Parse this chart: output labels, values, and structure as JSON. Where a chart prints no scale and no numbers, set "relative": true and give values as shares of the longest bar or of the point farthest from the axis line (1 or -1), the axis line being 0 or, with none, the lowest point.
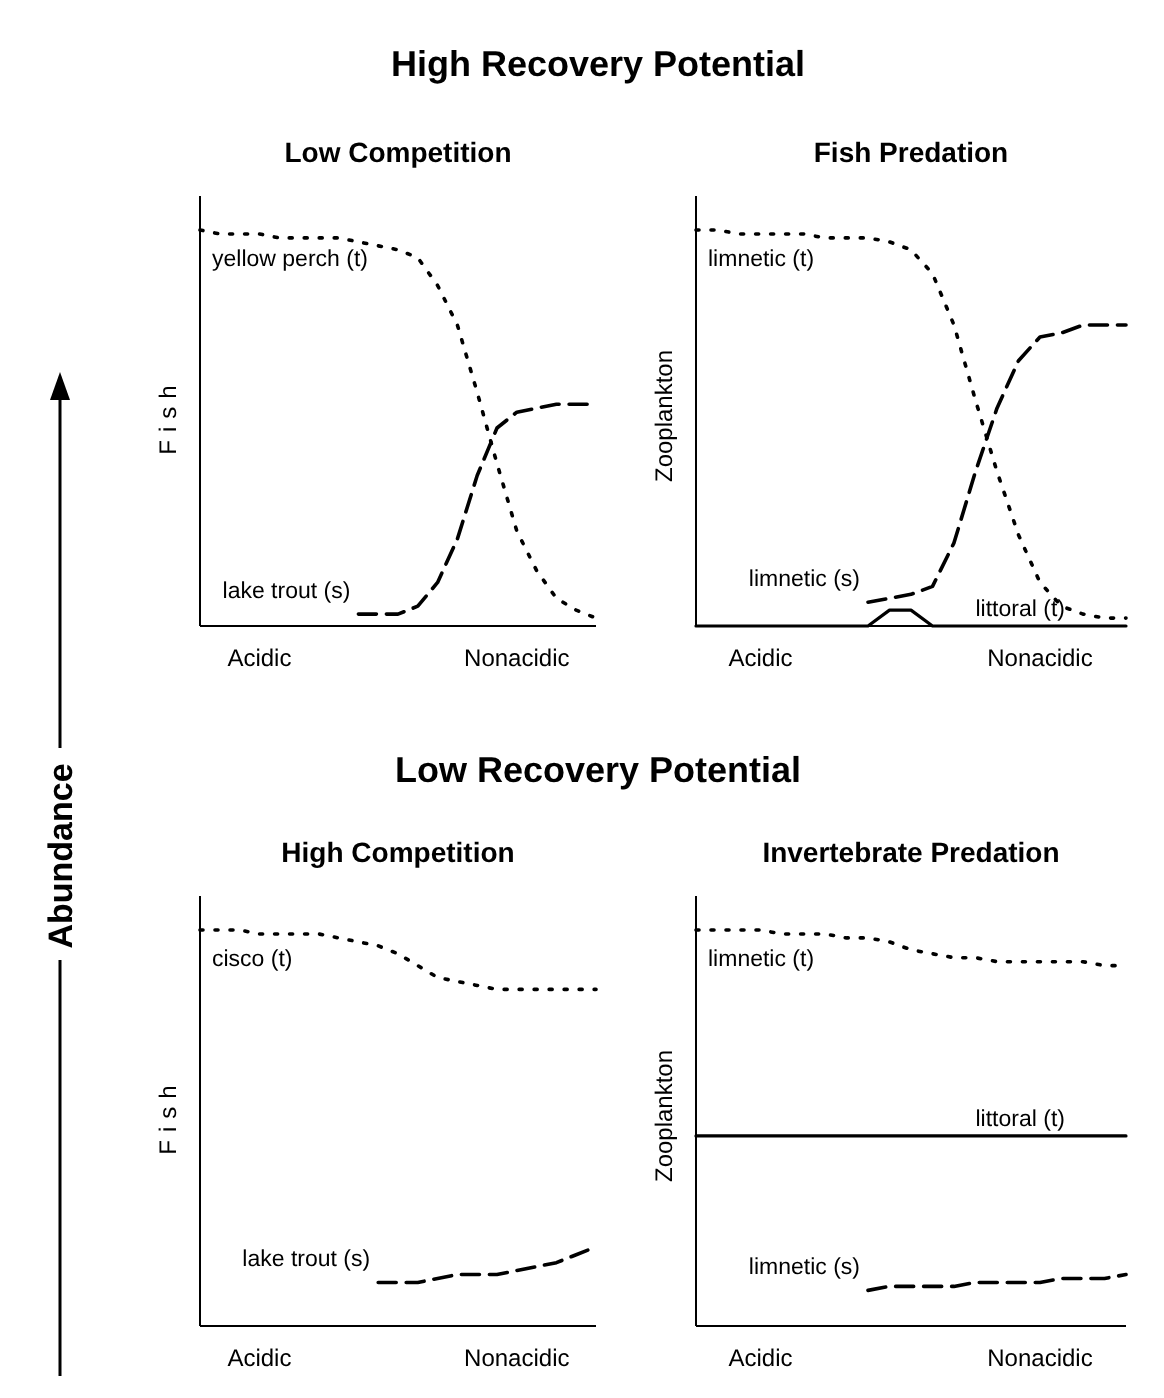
{
  "chart_data": [
    {
      "type": "line",
      "title": "Low Competition",
      "ylabel": "Fish",
      "relative": true,
      "tick_labels": "x",
      "annotations": [
        "High Recovery Potential",
        "Abundance"
      ],
      "categories": [
        null,
        null,
        null,
        "Acidic",
        null,
        null,
        null,
        null,
        null,
        null,
        null,
        null,
        null,
        null,
        null,
        null,
        "Nonacidic",
        null,
        null,
        null,
        null
      ],
      "series": [
        {
          "name": "yellow perch (t)",
          "color": "#000000",
          "line_style": "dotted",
          "values": [
            1,
            0.99,
            0.99,
            0.99,
            0.98,
            0.98,
            0.98,
            0.98,
            0.97,
            0.96,
            0.95,
            0.93,
            0.86,
            0.76,
            0.59,
            0.41,
            0.24,
            0.14,
            0.07,
            0.04,
            0.02
          ]
        },
        {
          "name": "lake trout (s)",
          "color": "#000000",
          "line_style": "dashed",
          "values": [
            null,
            null,
            null,
            null,
            null,
            null,
            null,
            null,
            0.03,
            0.03,
            0.03,
            0.05,
            0.11,
            0.22,
            0.38,
            0.5,
            0.54,
            0.55,
            0.56,
            0.56,
            0.56
          ]
        }
      ]
    },
    {
      "type": "line",
      "title": "Fish Predation",
      "ylabel": "Zooplankton",
      "relative": true,
      "tick_labels": "x",
      "categories": [
        null,
        null,
        null,
        "Acidic",
        null,
        null,
        null,
        null,
        null,
        null,
        null,
        null,
        null,
        null,
        null,
        null,
        "Nonacidic",
        null,
        null,
        null,
        null
      ],
      "series": [
        {
          "name": "limnetic (t)",
          "color": "#000000",
          "line_style": "dotted",
          "values": [
            1,
            1,
            0.99,
            0.99,
            0.99,
            0.99,
            0.98,
            0.98,
            0.98,
            0.97,
            0.95,
            0.89,
            0.76,
            0.57,
            0.39,
            0.23,
            0.11,
            0.05,
            0.03,
            0.02,
            0.02
          ]
        },
        {
          "name": "limnetic (s)",
          "color": "#000000",
          "line_style": "dashed",
          "values": [
            null,
            null,
            null,
            null,
            null,
            null,
            null,
            null,
            0.06,
            0.07,
            0.08,
            0.1,
            0.21,
            0.39,
            0.55,
            0.67,
            0.73,
            0.74,
            0.76,
            0.76,
            0.76
          ]
        },
        {
          "name": "littoral (t)",
          "color": "#000000",
          "line_style": "solid",
          "values": [
            0,
            0,
            0,
            0,
            0,
            0,
            0,
            0,
            0,
            0.04,
            0.04,
            0,
            0,
            0,
            0,
            0,
            0,
            0,
            0,
            0,
            0
          ]
        }
      ]
    },
    {
      "type": "line",
      "title": "High Competition",
      "ylabel": "Fish",
      "relative": true,
      "tick_labels": "x",
      "annotations": [
        "Low Recovery Potential"
      ],
      "categories": [
        null,
        null,
        null,
        "Acidic",
        null,
        null,
        null,
        null,
        null,
        null,
        null,
        null,
        null,
        null,
        null,
        null,
        "Nonacidic",
        null,
        null,
        null,
        null
      ],
      "series": [
        {
          "name": "cisco (t)",
          "color": "#000000",
          "line_style": "dotted",
          "values": [
            1,
            1,
            1,
            0.99,
            0.99,
            0.99,
            0.99,
            0.98,
            0.97,
            0.96,
            0.94,
            0.91,
            0.88,
            0.87,
            0.86,
            0.85,
            0.85,
            0.85,
            0.85,
            0.85,
            0.85
          ]
        },
        {
          "name": "lake trout (s)",
          "color": "#000000",
          "line_style": "dashed",
          "values": [
            null,
            null,
            null,
            null,
            null,
            null,
            null,
            null,
            null,
            0.11,
            0.11,
            0.11,
            0.12,
            0.13,
            0.13,
            0.13,
            0.14,
            0.15,
            0.16,
            0.18,
            0.2
          ]
        }
      ]
    },
    {
      "type": "line",
      "title": "Invertebrate Predation",
      "ylabel": "Zooplankton",
      "relative": true,
      "tick_labels": "x",
      "categories": [
        null,
        null,
        null,
        "Acidic",
        null,
        null,
        null,
        null,
        null,
        null,
        null,
        null,
        null,
        null,
        null,
        null,
        "Nonacidic",
        null,
        null,
        null,
        null
      ],
      "series": [
        {
          "name": "limnetic (t)",
          "color": "#000000",
          "line_style": "dotted",
          "values": [
            1,
            1,
            1,
            1,
            0.99,
            0.99,
            0.99,
            0.98,
            0.98,
            0.97,
            0.95,
            0.94,
            0.93,
            0.93,
            0.92,
            0.92,
            0.92,
            0.92,
            0.92,
            0.91,
            0.91
          ]
        },
        {
          "name": "littoral (t)",
          "color": "#000000",
          "line_style": "solid",
          "values": [
            0.48,
            0.48,
            0.48,
            0.48,
            0.48,
            0.48,
            0.48,
            0.48,
            0.48,
            0.48,
            0.48,
            0.48,
            0.48,
            0.48,
            0.48,
            0.48,
            0.48,
            0.48,
            0.48,
            0.48,
            0.48
          ]
        },
        {
          "name": "limnetic (s)",
          "color": "#000000",
          "line_style": "dashed",
          "values": [
            null,
            null,
            null,
            null,
            null,
            null,
            null,
            null,
            0.09,
            0.1,
            0.1,
            0.1,
            0.1,
            0.11,
            0.11,
            0.11,
            0.11,
            0.12,
            0.12,
            0.12,
            0.13
          ]
        }
      ]
    }
  ]
}
